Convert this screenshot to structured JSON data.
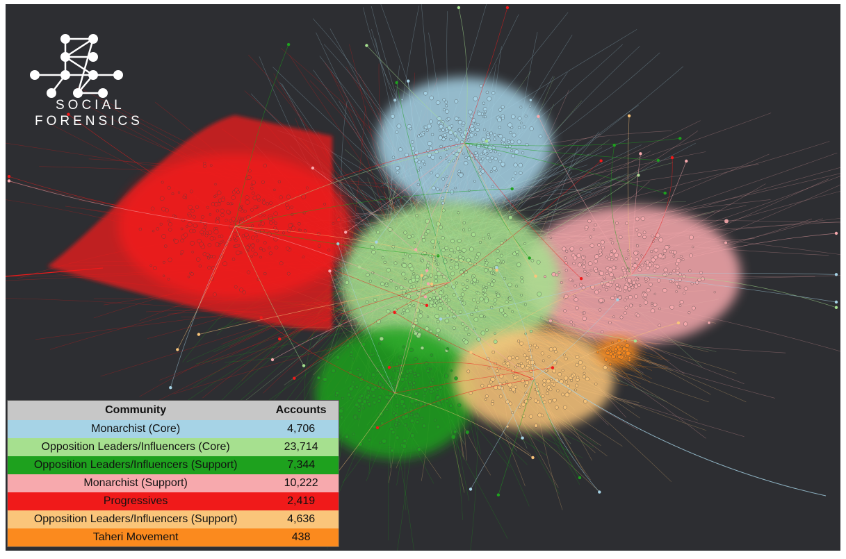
{
  "logo": {
    "line1": "SOCIAL",
    "line2": "FORENSICS"
  },
  "legend": {
    "header_community": "Community",
    "header_accounts": "Accounts",
    "rows": [
      {
        "community": "Monarchist (Core)",
        "accounts": "4,706",
        "color": "#a6d3e6"
      },
      {
        "community": "Opposition Leaders/Influencers (Core)",
        "accounts": "23,714",
        "color": "#a6e08f"
      },
      {
        "community": "Opposition Leaders/Influencers (Support)",
        "accounts": "7,344",
        "color": "#1ea11e"
      },
      {
        "community": "Monarchist (Support)",
        "accounts": "10,222",
        "color": "#f7a9ad"
      },
      {
        "community": "Progressives",
        "accounts": "2,419",
        "color": "#f01a1a"
      },
      {
        "community": "Opposition Leaders/Influencers (Support)",
        "accounts": "4,636",
        "color": "#fac57a"
      },
      {
        "community": "Taheri Movement",
        "accounts": "438",
        "color": "#fb8a1e"
      }
    ]
  },
  "colors": {
    "background": "#2d2e32",
    "logo": "#ffffff"
  }
}
